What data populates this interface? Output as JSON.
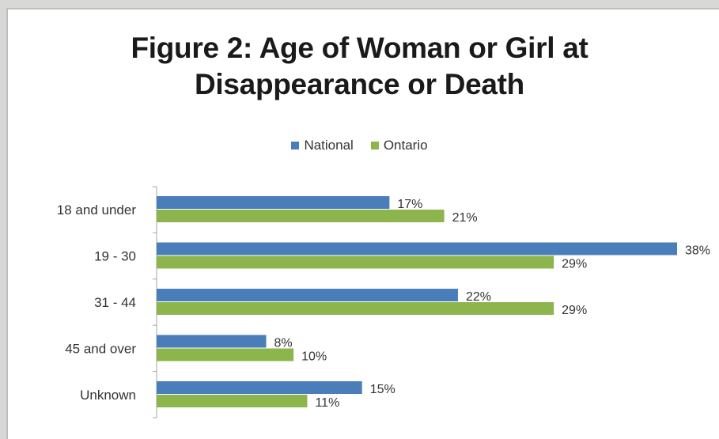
{
  "chart_data": {
    "type": "bar",
    "orientation": "horizontal",
    "title": "Figure 2: Age of Woman or Girl at Disappearance or Death",
    "title_lines": [
      "Figure 2: Age of Woman or Girl at",
      "Disappearance or Death"
    ],
    "categories": [
      "18 and under",
      "19 - 30",
      "31 - 44",
      "45 and over",
      "Unknown"
    ],
    "series": [
      {
        "name": "National",
        "color": "#4a7ebb",
        "values": [
          17,
          38,
          22,
          8,
          15
        ],
        "labels": [
          "17%",
          "38%",
          "22%",
          "8%",
          "15%"
        ]
      },
      {
        "name": "Ontario",
        "color": "#8cb54d",
        "values": [
          21,
          29,
          29,
          10,
          11
        ],
        "labels": [
          "21%",
          "29%",
          "29%",
          "10%",
          "11%"
        ]
      }
    ],
    "xlim": [
      0,
      38
    ],
    "legend_position": "top",
    "grid": false
  }
}
